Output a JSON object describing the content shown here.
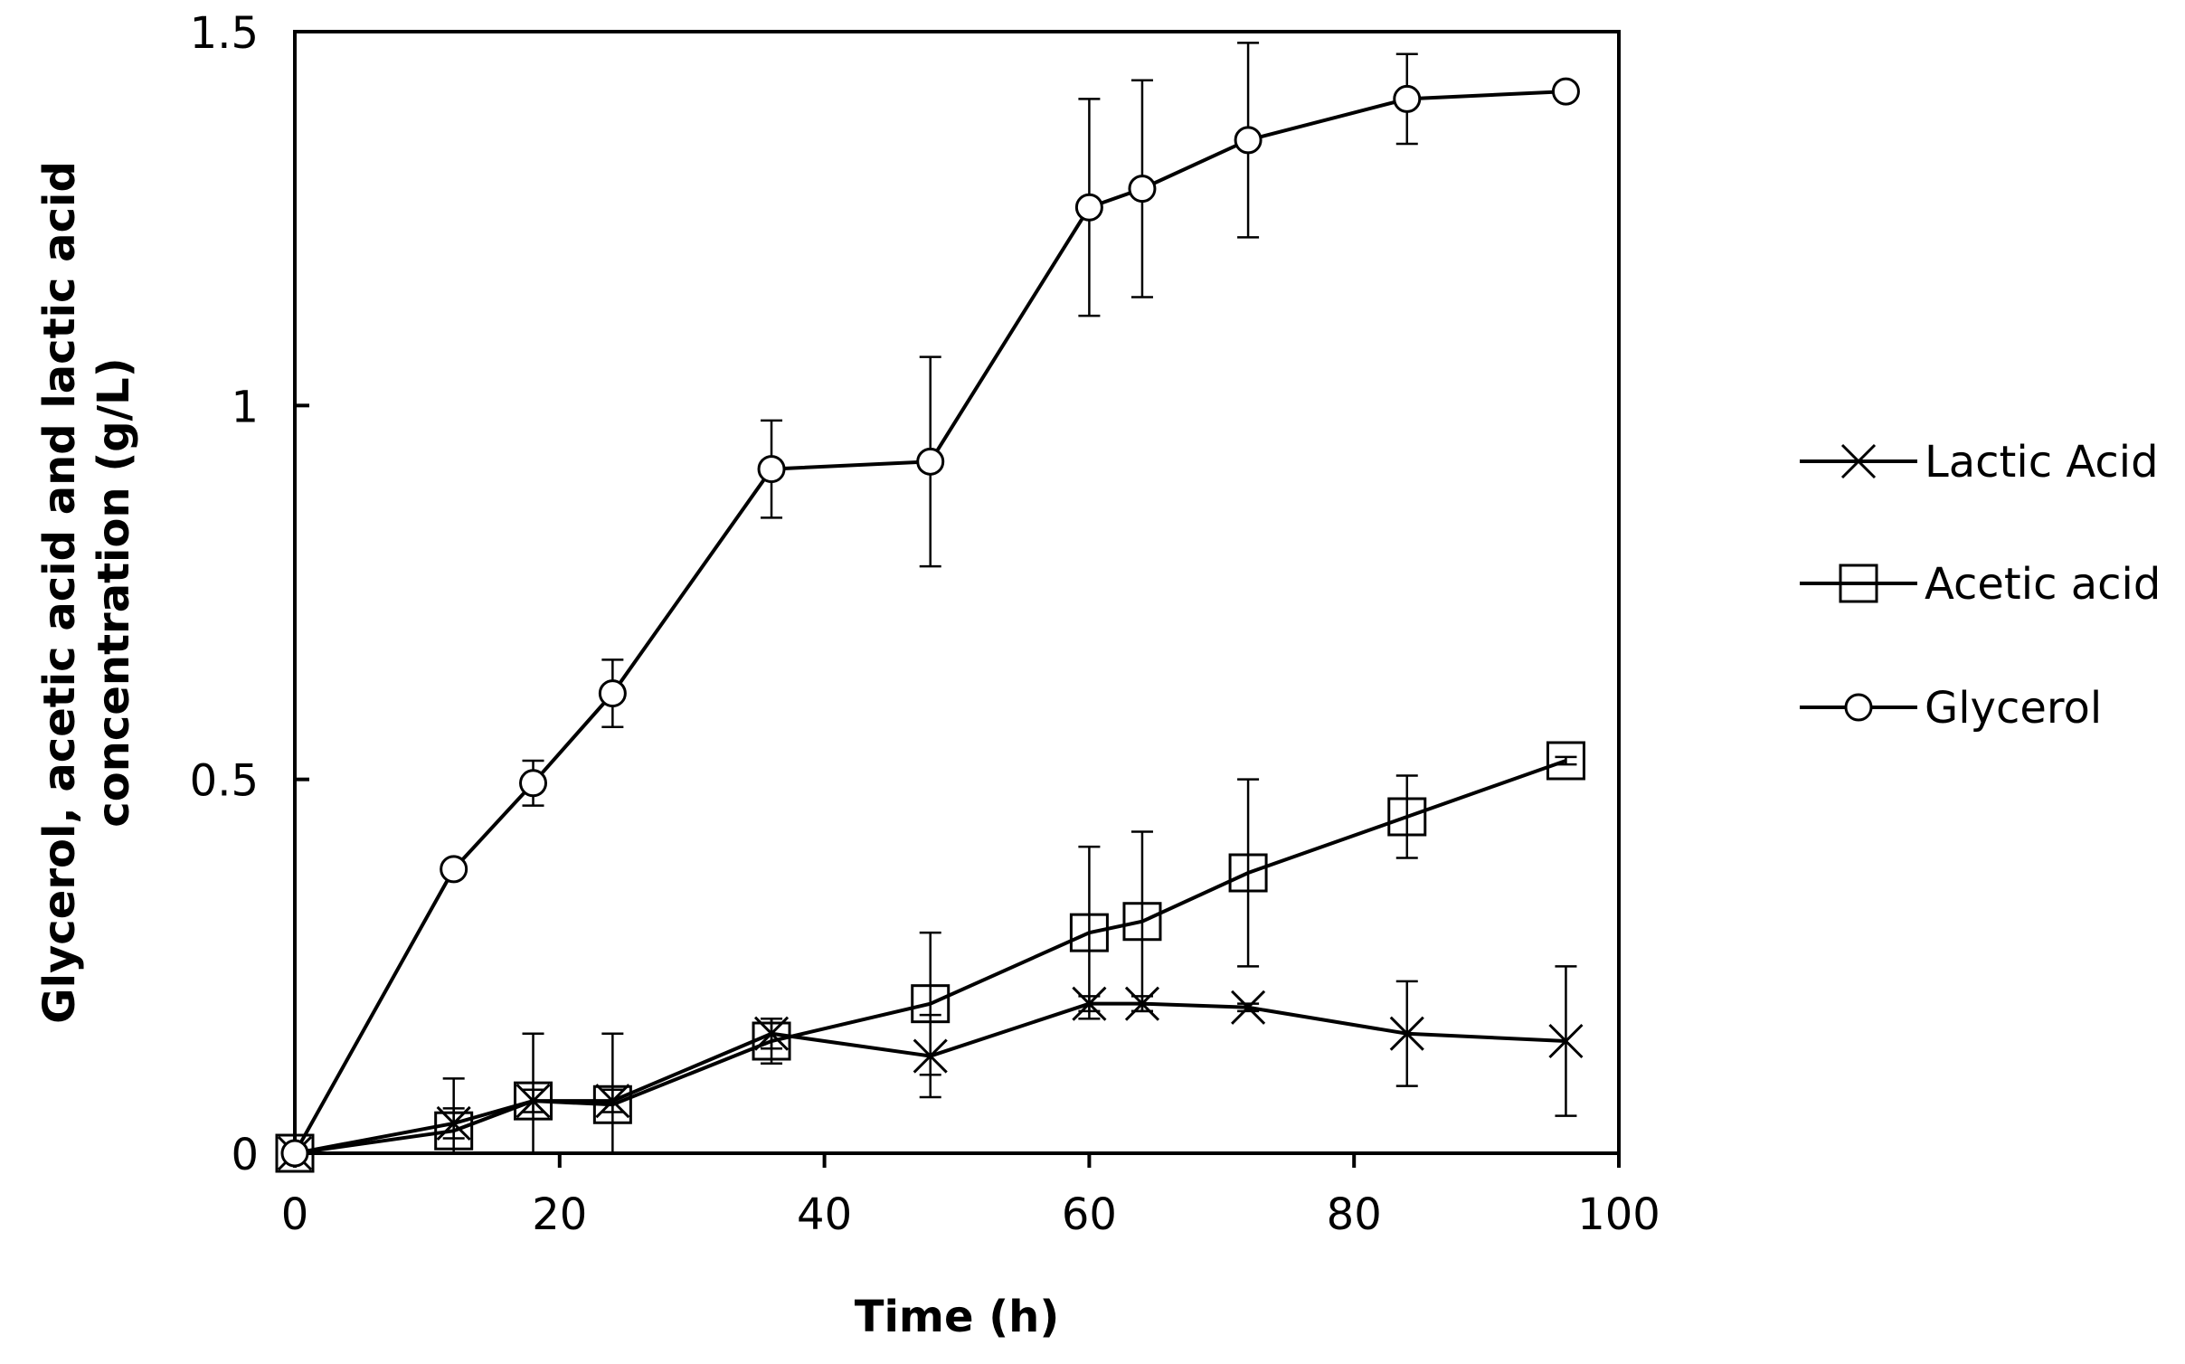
{
  "chart_data": {
    "type": "line",
    "title": "",
    "xlabel": "Time (h)",
    "ylabel_lines": [
      "Glycerol, acetic acid and lactic acid",
      "concentration (g/L)"
    ],
    "xlim": [
      0,
      100
    ],
    "ylim": [
      0,
      1.5
    ],
    "x_ticks": [
      0,
      20,
      40,
      60,
      80,
      100
    ],
    "x_tick_labels": [
      "0",
      "20",
      "40",
      "60",
      "80",
      "100"
    ],
    "y_ticks": [
      0,
      0.5,
      1,
      1.5
    ],
    "y_tick_labels": [
      "0",
      "0.5",
      "1",
      "1.5"
    ],
    "grid": false,
    "legend_position": "right",
    "series": [
      {
        "name": "Lactic Acid",
        "marker": "x",
        "x": [
          0,
          12,
          18,
          24,
          36,
          48,
          60,
          64,
          72,
          84,
          96
        ],
        "y": [
          0,
          0.04,
          0.07,
          0.07,
          0.16,
          0.13,
          0.2,
          0.2,
          0.195,
          0.16,
          0.15
        ],
        "err": [
          0,
          0.02,
          0.015,
          0.015,
          0.02,
          0.055,
          0.01,
          0.01,
          0.005,
          0.07,
          0.1
        ]
      },
      {
        "name": "Acetic acid",
        "marker": "square",
        "x": [
          0,
          12,
          18,
          24,
          36,
          48,
          60,
          64,
          72,
          84,
          96
        ],
        "y": [
          0,
          0.03,
          0.07,
          0.065,
          0.15,
          0.2,
          0.295,
          0.31,
          0.375,
          0.45,
          0.525
        ],
        "err": [
          0,
          0.07,
          0.09,
          0.095,
          0.03,
          0.095,
          0.115,
          0.12,
          0.125,
          0.055,
          0.005
        ]
      },
      {
        "name": "Glycerol",
        "marker": "circle",
        "x": [
          0,
          12,
          18,
          24,
          36,
          48,
          60,
          64,
          72,
          84,
          96
        ],
        "y": [
          0,
          0.38,
          0.495,
          0.615,
          0.915,
          0.925,
          1.265,
          1.29,
          1.355,
          1.41,
          1.42
        ],
        "err": [
          0,
          0.005,
          0.03,
          0.045,
          0.065,
          0.14,
          0.145,
          0.145,
          0.13,
          0.06,
          0.005
        ]
      }
    ]
  }
}
